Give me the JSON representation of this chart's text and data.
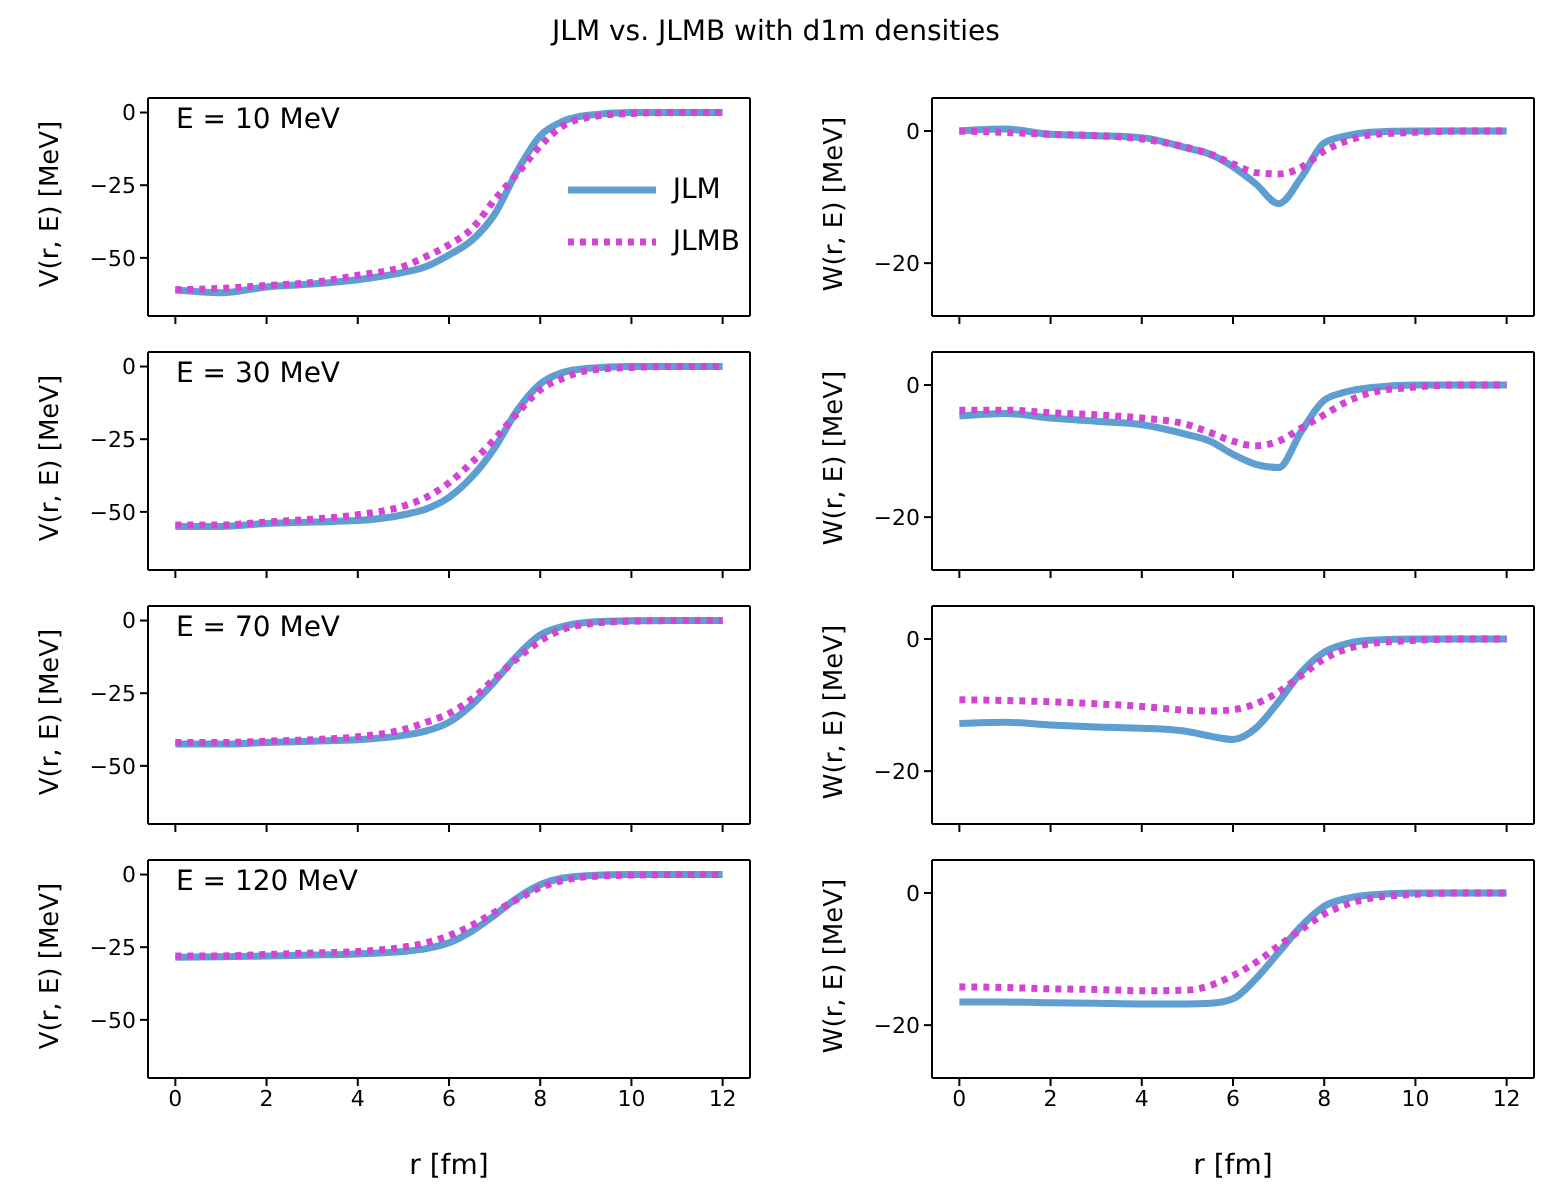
{
  "chart_data": [
    {
      "type": "line",
      "title": "JLM vs. JLMB with d1m densities",
      "annotations": [
        "E = 10 MeV"
      ],
      "ylabel": "V(r, E) [MeV]",
      "tick_labels": "y",
      "legend": "right",
      "x": [
        0,
        1,
        2,
        3,
        4,
        5,
        5.5,
        6,
        6.5,
        7,
        7.5,
        8,
        8.5,
        9,
        10,
        11,
        12
      ],
      "xlim": [
        -0.6,
        12.6
      ],
      "xticks": [
        0,
        2,
        4,
        6,
        8,
        10,
        12
      ],
      "ylim": [
        -70,
        5
      ],
      "yticks": [
        0,
        -25,
        -50
      ],
      "series": [
        {
          "name": "JLM",
          "color": "#5f9ed1",
          "line_style": "solid",
          "values": [
            -61,
            -62,
            -60,
            -59,
            -57.5,
            -55,
            -53,
            -49,
            -44,
            -35,
            -20,
            -8,
            -3,
            -1,
            0,
            0,
            0
          ]
        },
        {
          "name": "JLMB",
          "color": "#d444d4",
          "line_style": "dotted",
          "values": [
            -61,
            -60.5,
            -59.5,
            -58.5,
            -56,
            -53,
            -49.5,
            -45.5,
            -40,
            -30,
            -21,
            -11.5,
            -4.6,
            -1.8,
            -0.3,
            0,
            0
          ]
        }
      ]
    },
    {
      "type": "line",
      "ylabel": "W(r, E) [MeV]",
      "tick_labels": "y",
      "x": [
        0,
        1,
        2,
        3,
        4,
        5,
        5.5,
        6,
        6.5,
        7,
        7.5,
        8,
        8.5,
        9,
        10,
        11,
        12
      ],
      "xlim": [
        -0.6,
        12.6
      ],
      "xticks": [
        0,
        2,
        4,
        6,
        8,
        10,
        12
      ],
      "ylim": [
        -28,
        5
      ],
      "yticks": [
        0,
        -20
      ],
      "series": [
        {
          "color": "#5f9ed1",
          "line_style": "solid",
          "values": [
            0,
            0.3,
            -0.5,
            -0.7,
            -1,
            -2.6,
            -3.5,
            -5.4,
            -8,
            -11,
            -7,
            -1.8,
            -0.7,
            -0.2,
            0,
            0,
            0
          ]
        },
        {
          "color": "#d444d4",
          "line_style": "dotted",
          "values": [
            0,
            -0.2,
            -0.5,
            -0.7,
            -1.2,
            -2.5,
            -3.5,
            -5,
            -6.3,
            -6.5,
            -5.5,
            -3,
            -1.5,
            -0.6,
            -0.2,
            0,
            0
          ]
        }
      ]
    },
    {
      "type": "line",
      "annotations": [
        "E = 30 MeV"
      ],
      "ylabel": "V(r, E) [MeV]",
      "tick_labels": "y",
      "x": [
        0,
        1,
        2,
        3,
        4,
        5,
        5.5,
        6,
        6.5,
        7,
        7.5,
        8,
        8.5,
        9,
        10,
        11,
        12
      ],
      "xlim": [
        -0.6,
        12.6
      ],
      "xticks": [
        0,
        2,
        4,
        6,
        8,
        10,
        12
      ],
      "ylim": [
        -70,
        5
      ],
      "yticks": [
        0,
        -25,
        -50
      ],
      "series": [
        {
          "color": "#5f9ed1",
          "line_style": "solid",
          "values": [
            -55,
            -55,
            -54,
            -53.5,
            -53,
            -51,
            -49,
            -45,
            -38,
            -28,
            -15,
            -6,
            -2,
            -0.7,
            0,
            0,
            0
          ]
        },
        {
          "color": "#d444d4",
          "line_style": "dotted",
          "values": [
            -54.5,
            -54.5,
            -53.5,
            -52.5,
            -51,
            -48,
            -45,
            -40,
            -33,
            -25,
            -16,
            -8,
            -4,
            -1.5,
            -0.3,
            0,
            0
          ]
        }
      ]
    },
    {
      "type": "line",
      "ylabel": "W(r, E) [MeV]",
      "tick_labels": "y",
      "x": [
        0,
        1,
        2,
        3,
        4,
        5,
        5.5,
        6,
        6.5,
        7,
        7.5,
        8,
        8.5,
        9,
        10,
        11,
        12
      ],
      "xlim": [
        -0.6,
        12.6
      ],
      "xticks": [
        0,
        2,
        4,
        6,
        8,
        10,
        12
      ],
      "ylim": [
        -28,
        5
      ],
      "yticks": [
        0,
        -20
      ],
      "series": [
        {
          "color": "#5f9ed1",
          "line_style": "solid",
          "values": [
            -4.7,
            -4.3,
            -5,
            -5.5,
            -6,
            -7.5,
            -8.5,
            -10.5,
            -12,
            -12.5,
            -7,
            -2.3,
            -1,
            -0.4,
            0,
            0,
            0
          ]
        },
        {
          "color": "#d444d4",
          "line_style": "dotted",
          "values": [
            -3.8,
            -3.8,
            -4.2,
            -4.5,
            -5,
            -6,
            -7.2,
            -8.5,
            -9.2,
            -8.5,
            -6.5,
            -4.5,
            -2.5,
            -1.2,
            -0.3,
            0,
            0
          ]
        }
      ]
    },
    {
      "type": "line",
      "annotations": [
        "E = 70 MeV"
      ],
      "ylabel": "V(r, E) [MeV]",
      "tick_labels": "y",
      "x": [
        0,
        1,
        2,
        3,
        4,
        5,
        5.5,
        6,
        6.5,
        7,
        7.5,
        8,
        8.5,
        9,
        10,
        11,
        12
      ],
      "xlim": [
        -0.6,
        12.6
      ],
      "xticks": [
        0,
        2,
        4,
        6,
        8,
        10,
        12
      ],
      "ylim": [
        -70,
        5
      ],
      "yticks": [
        0,
        -25,
        -50
      ],
      "series": [
        {
          "color": "#5f9ed1",
          "line_style": "solid",
          "values": [
            -42.5,
            -42.5,
            -42,
            -41.5,
            -41,
            -39.5,
            -38,
            -35,
            -29,
            -21,
            -12,
            -5,
            -2,
            -0.7,
            -0.1,
            0,
            0
          ]
        },
        {
          "color": "#d444d4",
          "line_style": "dotted",
          "values": [
            -42,
            -42,
            -41.5,
            -41,
            -40,
            -37.5,
            -35,
            -32,
            -27,
            -20,
            -13,
            -7,
            -3,
            -1.3,
            -0.2,
            0,
            0
          ]
        }
      ]
    },
    {
      "type": "line",
      "ylabel": "W(r, E) [MeV]",
      "tick_labels": "y",
      "x": [
        0,
        1,
        2,
        3,
        4,
        5,
        5.5,
        6,
        6.5,
        7,
        7.5,
        8,
        8.5,
        9,
        10,
        11,
        12
      ],
      "xlim": [
        -0.6,
        12.6
      ],
      "xticks": [
        0,
        2,
        4,
        6,
        8,
        10,
        12
      ],
      "ylim": [
        -28,
        5
      ],
      "yticks": [
        0,
        -20
      ],
      "series": [
        {
          "color": "#5f9ed1",
          "line_style": "solid",
          "values": [
            -12.8,
            -12.6,
            -13,
            -13.3,
            -13.5,
            -14,
            -14.7,
            -15.2,
            -13.5,
            -9.5,
            -5,
            -2,
            -0.7,
            -0.2,
            0,
            0,
            0
          ]
        },
        {
          "color": "#d444d4",
          "line_style": "dotted",
          "values": [
            -9.2,
            -9.3,
            -9.5,
            -9.8,
            -10.2,
            -10.8,
            -10.9,
            -10.7,
            -9.8,
            -8,
            -5.5,
            -3,
            -1.5,
            -0.7,
            -0.2,
            0,
            0
          ]
        }
      ]
    },
    {
      "type": "line",
      "annotations": [
        "E = 120 MeV"
      ],
      "ylabel": "V(r, E) [MeV]",
      "xlabel": "r [fm]",
      "x": [
        0,
        1,
        2,
        3,
        4,
        5,
        5.5,
        6,
        6.5,
        7,
        7.5,
        8,
        8.5,
        9,
        10,
        11,
        12
      ],
      "xlim": [
        -0.6,
        12.6
      ],
      "xticks": [
        0,
        2,
        4,
        6,
        8,
        10,
        12
      ],
      "ylim": [
        -70,
        5
      ],
      "yticks": [
        0,
        -25,
        -50
      ],
      "series": [
        {
          "color": "#5f9ed1",
          "line_style": "solid",
          "values": [
            -28.5,
            -28.3,
            -28,
            -27.7,
            -27.3,
            -26.5,
            -25.5,
            -23.5,
            -19.5,
            -14,
            -8,
            -3.5,
            -1.2,
            -0.4,
            0,
            0,
            0
          ]
        },
        {
          "color": "#d444d4",
          "line_style": "dotted",
          "values": [
            -28,
            -28,
            -27.5,
            -27,
            -26.5,
            -25,
            -23.5,
            -21,
            -17.5,
            -13,
            -8.5,
            -4.5,
            -2,
            -0.8,
            -0.2,
            0,
            0
          ]
        }
      ]
    },
    {
      "type": "line",
      "ylabel": "W(r, E) [MeV]",
      "xlabel": "r [fm]",
      "x": [
        0,
        1,
        2,
        3,
        4,
        5,
        5.5,
        6,
        6.5,
        7,
        7.5,
        8,
        8.5,
        9,
        10,
        11,
        12
      ],
      "xlim": [
        -0.6,
        12.6
      ],
      "xticks": [
        0,
        2,
        4,
        6,
        8,
        10,
        12
      ],
      "ylim": [
        -28,
        5
      ],
      "yticks": [
        0,
        -20
      ],
      "series": [
        {
          "color": "#5f9ed1",
          "line_style": "solid",
          "values": [
            -16.5,
            -16.5,
            -16.6,
            -16.7,
            -16.8,
            -16.8,
            -16.7,
            -16,
            -13,
            -9,
            -5,
            -2,
            -0.8,
            -0.3,
            0,
            0,
            0
          ]
        },
        {
          "color": "#d444d4",
          "line_style": "dotted",
          "values": [
            -14.2,
            -14.3,
            -14.5,
            -14.6,
            -14.8,
            -14.7,
            -14,
            -12.5,
            -10.5,
            -8,
            -5.5,
            -3.2,
            -1.7,
            -0.8,
            -0.2,
            0,
            0
          ]
        }
      ]
    }
  ]
}
